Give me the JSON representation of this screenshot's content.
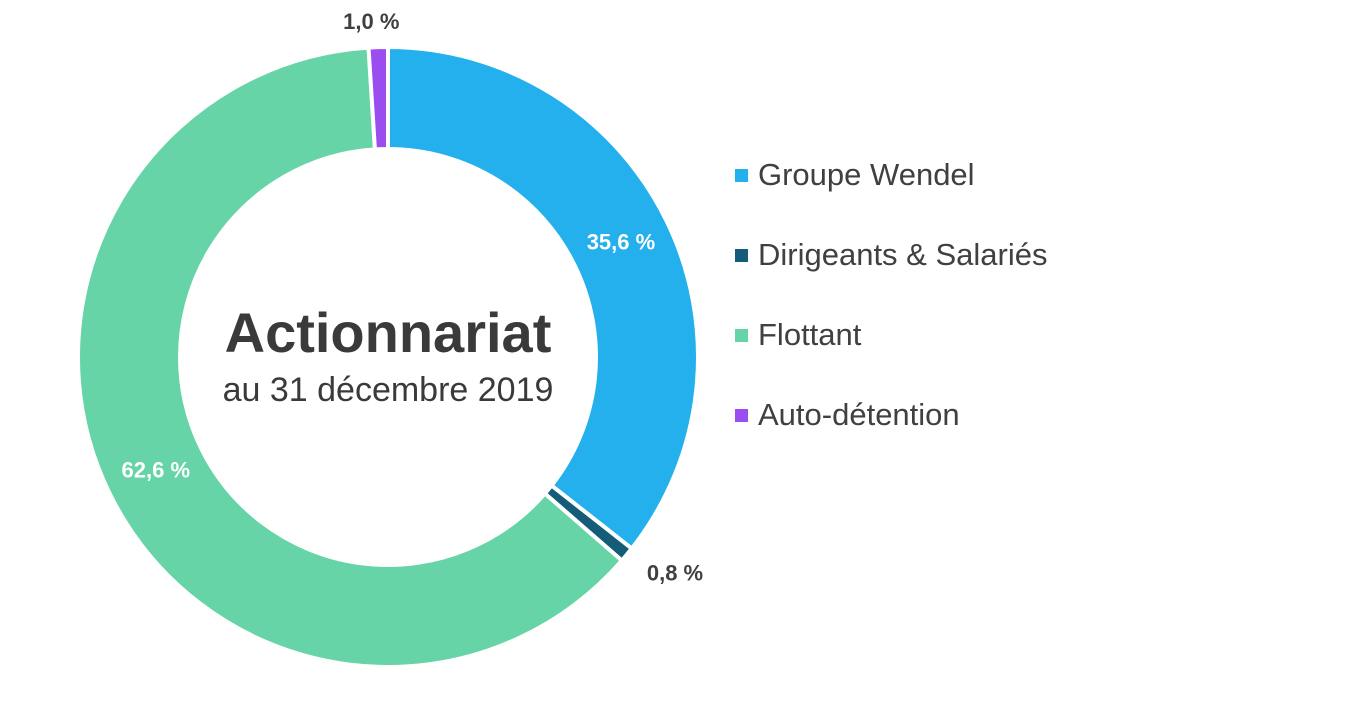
{
  "chart_data": {
    "type": "pie",
    "variant": "donut",
    "title": "Actionnariat",
    "subtitle": "au 31 décembre 2019",
    "categories": [
      "Groupe Wendel",
      "Dirigeants & Salariés",
      "Flottant",
      "Auto-détention"
    ],
    "values": [
      35.6,
      0.8,
      62.6,
      1.0
    ],
    "data_labels": [
      "35,6 %",
      "0,8 %",
      "62,6 %",
      "1,0 %"
    ],
    "colors": [
      "#23b0ec",
      "#145c78",
      "#66d4a6",
      "#9a4ef0"
    ],
    "label_colors": [
      "#ffffff",
      "#404040",
      "#ffffff",
      "#404040"
    ],
    "legend_placement": "right"
  }
}
